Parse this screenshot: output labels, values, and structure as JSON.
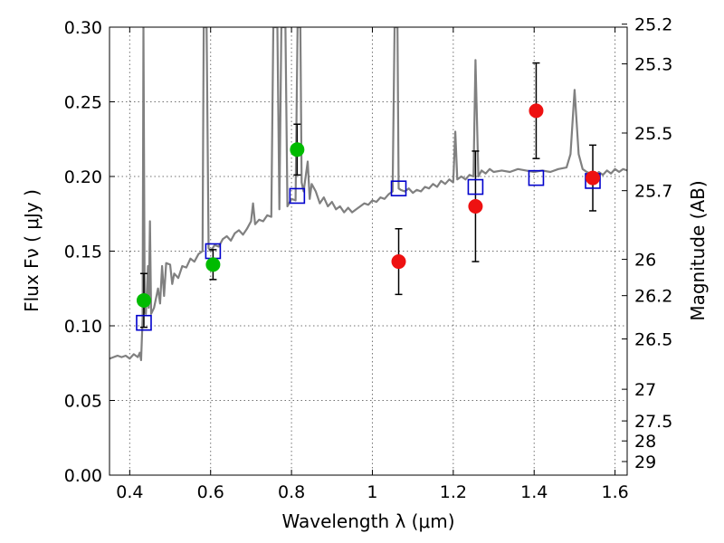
{
  "chart_data": {
    "type": "scatter",
    "xlabel": "Wavelength  λ (μm)",
    "ylabel": "Flux  Fν  ( μJy )",
    "ylabel_right": "Magnitude (AB)",
    "xlim": [
      0.35,
      1.63
    ],
    "ylim": [
      0.0,
      0.3
    ],
    "grid": true,
    "x_ticks": [
      0.4,
      0.6,
      0.8,
      1.0,
      1.2,
      1.4,
      1.6
    ],
    "x_tick_labels": [
      "0.4",
      "0.6",
      "0.8",
      "1",
      "1.2",
      "1.4",
      "1.6"
    ],
    "y_ticks": [
      0.0,
      0.05,
      0.1,
      0.15,
      0.2,
      0.25,
      0.3
    ],
    "y_tick_labels": [
      "0.00",
      "0.05",
      "0.10",
      "0.15",
      "0.20",
      "0.25",
      "0.30"
    ],
    "right_ticks": [
      {
        "label": "25.2",
        "flux": 0.302
      },
      {
        "label": "25.3",
        "flux": 0.2754
      },
      {
        "label": "25.5",
        "flux": 0.2291
      },
      {
        "label": "25.7",
        "flux": 0.1905
      },
      {
        "label": "26",
        "flux": 0.1445
      },
      {
        "label": "26.2",
        "flux": 0.1202
      },
      {
        "label": "26.5",
        "flux": 0.0912
      },
      {
        "label": "27",
        "flux": 0.0575
      },
      {
        "label": "27.5",
        "flux": 0.0363
      },
      {
        "label": "28",
        "flux": 0.0229
      },
      {
        "label": "29",
        "flux": 0.0091
      }
    ],
    "colors": {
      "model": "#808080",
      "green_points": "#00bb00",
      "red_points": "#ee1111",
      "squares": "#0000cc",
      "errorbars": "#000000"
    },
    "model_spectrum": [
      [
        0.35,
        0.078
      ],
      [
        0.36,
        0.079
      ],
      [
        0.37,
        0.08
      ],
      [
        0.38,
        0.079
      ],
      [
        0.39,
        0.08
      ],
      [
        0.4,
        0.078
      ],
      [
        0.41,
        0.081
      ],
      [
        0.42,
        0.079
      ],
      [
        0.425,
        0.082
      ],
      [
        0.428,
        0.077
      ],
      [
        0.432,
        0.105
      ],
      [
        0.434,
        0.3
      ],
      [
        0.437,
        0.11
      ],
      [
        0.44,
        0.108
      ],
      [
        0.445,
        0.14
      ],
      [
        0.447,
        0.112
      ],
      [
        0.45,
        0.17
      ],
      [
        0.453,
        0.108
      ],
      [
        0.46,
        0.112
      ],
      [
        0.47,
        0.125
      ],
      [
        0.475,
        0.115
      ],
      [
        0.48,
        0.14
      ],
      [
        0.485,
        0.12
      ],
      [
        0.49,
        0.142
      ],
      [
        0.5,
        0.141
      ],
      [
        0.505,
        0.128
      ],
      [
        0.51,
        0.135
      ],
      [
        0.52,
        0.132
      ],
      [
        0.53,
        0.14
      ],
      [
        0.54,
        0.139
      ],
      [
        0.55,
        0.145
      ],
      [
        0.56,
        0.143
      ],
      [
        0.57,
        0.148
      ],
      [
        0.58,
        0.15
      ],
      [
        0.583,
        0.3
      ],
      [
        0.59,
        0.3
      ],
      [
        0.595,
        0.152
      ],
      [
        0.6,
        0.15
      ],
      [
        0.61,
        0.154
      ],
      [
        0.62,
        0.153
      ],
      [
        0.63,
        0.158
      ],
      [
        0.64,
        0.16
      ],
      [
        0.65,
        0.157
      ],
      [
        0.66,
        0.162
      ],
      [
        0.67,
        0.164
      ],
      [
        0.68,
        0.161
      ],
      [
        0.69,
        0.165
      ],
      [
        0.7,
        0.17
      ],
      [
        0.705,
        0.182
      ],
      [
        0.71,
        0.168
      ],
      [
        0.72,
        0.171
      ],
      [
        0.73,
        0.17
      ],
      [
        0.74,
        0.174
      ],
      [
        0.75,
        0.173
      ],
      [
        0.755,
        0.3
      ],
      [
        0.765,
        0.3
      ],
      [
        0.77,
        0.178
      ],
      [
        0.775,
        0.3
      ],
      [
        0.785,
        0.3
      ],
      [
        0.79,
        0.18
      ],
      [
        0.8,
        0.185
      ],
      [
        0.81,
        0.184
      ],
      [
        0.815,
        0.3
      ],
      [
        0.822,
        0.3
      ],
      [
        0.825,
        0.196
      ],
      [
        0.83,
        0.19
      ],
      [
        0.84,
        0.21
      ],
      [
        0.845,
        0.185
      ],
      [
        0.85,
        0.195
      ],
      [
        0.86,
        0.19
      ],
      [
        0.87,
        0.182
      ],
      [
        0.88,
        0.186
      ],
      [
        0.89,
        0.18
      ],
      [
        0.9,
        0.183
      ],
      [
        0.91,
        0.178
      ],
      [
        0.92,
        0.18
      ],
      [
        0.93,
        0.176
      ],
      [
        0.94,
        0.179
      ],
      [
        0.95,
        0.176
      ],
      [
        0.96,
        0.178
      ],
      [
        0.97,
        0.18
      ],
      [
        0.98,
        0.182
      ],
      [
        0.99,
        0.181
      ],
      [
        1.0,
        0.184
      ],
      [
        1.01,
        0.183
      ],
      [
        1.02,
        0.186
      ],
      [
        1.03,
        0.185
      ],
      [
        1.04,
        0.188
      ],
      [
        1.05,
        0.19
      ],
      [
        1.055,
        0.3
      ],
      [
        1.062,
        0.3
      ],
      [
        1.065,
        0.192
      ],
      [
        1.07,
        0.191
      ],
      [
        1.08,
        0.19
      ],
      [
        1.09,
        0.192
      ],
      [
        1.1,
        0.189
      ],
      [
        1.11,
        0.191
      ],
      [
        1.12,
        0.19
      ],
      [
        1.13,
        0.193
      ],
      [
        1.14,
        0.192
      ],
      [
        1.15,
        0.195
      ],
      [
        1.16,
        0.193
      ],
      [
        1.17,
        0.197
      ],
      [
        1.18,
        0.195
      ],
      [
        1.19,
        0.198
      ],
      [
        1.2,
        0.196
      ],
      [
        1.205,
        0.23
      ],
      [
        1.21,
        0.198
      ],
      [
        1.22,
        0.2
      ],
      [
        1.23,
        0.198
      ],
      [
        1.24,
        0.201
      ],
      [
        1.25,
        0.2
      ],
      [
        1.255,
        0.278
      ],
      [
        1.262,
        0.2
      ],
      [
        1.27,
        0.204
      ],
      [
        1.28,
        0.202
      ],
      [
        1.29,
        0.205
      ],
      [
        1.3,
        0.203
      ],
      [
        1.32,
        0.204
      ],
      [
        1.34,
        0.203
      ],
      [
        1.36,
        0.205
      ],
      [
        1.38,
        0.204
      ],
      [
        1.4,
        0.203
      ],
      [
        1.42,
        0.204
      ],
      [
        1.44,
        0.203
      ],
      [
        1.46,
        0.205
      ],
      [
        1.48,
        0.206
      ],
      [
        1.49,
        0.215
      ],
      [
        1.5,
        0.258
      ],
      [
        1.51,
        0.215
      ],
      [
        1.52,
        0.205
      ],
      [
        1.53,
        0.203
      ],
      [
        1.54,
        0.202
      ],
      [
        1.55,
        0.2
      ],
      [
        1.56,
        0.203
      ],
      [
        1.57,
        0.201
      ],
      [
        1.58,
        0.204
      ],
      [
        1.59,
        0.202
      ],
      [
        1.6,
        0.205
      ],
      [
        1.61,
        0.203
      ],
      [
        1.62,
        0.205
      ],
      [
        1.63,
        0.204
      ]
    ],
    "green_points": [
      {
        "x": 0.435,
        "y": 0.117,
        "err": 0.018
      },
      {
        "x": 0.606,
        "y": 0.141,
        "err": 0.01
      },
      {
        "x": 0.814,
        "y": 0.218,
        "err": 0.017
      }
    ],
    "red_points": [
      {
        "x": 1.065,
        "y": 0.143,
        "err": 0.022
      },
      {
        "x": 1.255,
        "y": 0.18,
        "err": 0.037
      },
      {
        "x": 1.405,
        "y": 0.244,
        "err": 0.032
      },
      {
        "x": 1.545,
        "y": 0.199,
        "err": 0.022
      }
    ],
    "model_squares": [
      {
        "x": 0.435,
        "y": 0.102
      },
      {
        "x": 0.606,
        "y": 0.15
      },
      {
        "x": 0.814,
        "y": 0.187
      },
      {
        "x": 1.065,
        "y": 0.192
      },
      {
        "x": 1.255,
        "y": 0.193
      },
      {
        "x": 1.405,
        "y": 0.199
      },
      {
        "x": 1.545,
        "y": 0.197
      }
    ]
  }
}
